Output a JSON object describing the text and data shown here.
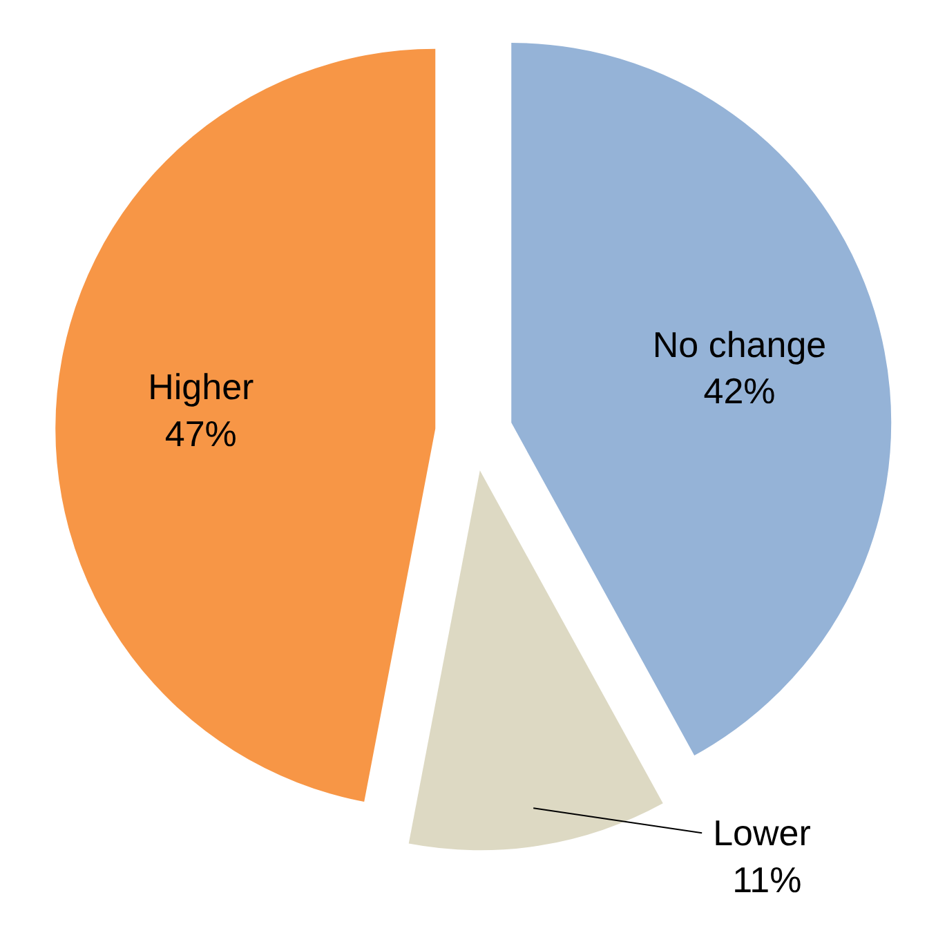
{
  "chart_data": {
    "type": "pie",
    "categories": [
      "No change",
      "Lower",
      "Higher"
    ],
    "values": [
      42,
      11,
      47
    ],
    "colors": [
      "#95b3d7",
      "#ddd9c3",
      "#f79646"
    ],
    "value_labels": [
      "42%",
      "11%",
      "47%"
    ]
  }
}
